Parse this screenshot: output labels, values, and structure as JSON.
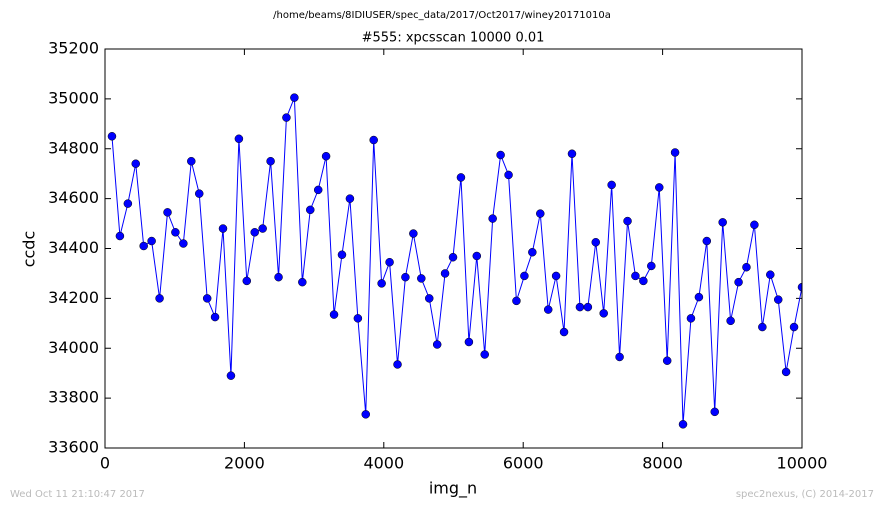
{
  "chart_data": {
    "type": "line",
    "suptitle": "/home/beams/8IDIUSER/spec_data/2017/Oct2017/winey20171010a",
    "title": "#555: xpcsscan 10000 0.01",
    "xlabel": "img_n",
    "ylabel": "ccdc",
    "footer_left": "Wed Oct 11 21:10:47 2017",
    "footer_right": "spec2nexus, (C) 2014-2017",
    "color": "#0000ff",
    "marker": true,
    "grid": false,
    "xlim": [
      0,
      10000
    ],
    "xticks": [
      0,
      2000,
      4000,
      6000,
      8000,
      10000
    ],
    "ylim": [
      33600,
      35200
    ],
    "yticks": [
      33600,
      33800,
      34000,
      34200,
      34400,
      34600,
      34800,
      35000,
      35200
    ],
    "x": [
      100,
      214,
      328,
      441,
      555,
      669,
      783,
      897,
      1010,
      1124,
      1238,
      1352,
      1466,
      1579,
      1693,
      1807,
      1921,
      2034,
      2148,
      2262,
      2376,
      2490,
      2603,
      2717,
      2831,
      2945,
      3059,
      3172,
      3286,
      3400,
      3514,
      3628,
      3741,
      3855,
      3969,
      4083,
      4197,
      4310,
      4424,
      4538,
      4652,
      4766,
      4879,
      4993,
      5107,
      5221,
      5334,
      5448,
      5562,
      5676,
      5790,
      5903,
      6017,
      6131,
      6245,
      6359,
      6472,
      6586,
      6700,
      6814,
      6928,
      7041,
      7155,
      7269,
      7383,
      7497,
      7610,
      7724,
      7838,
      7952,
      8066,
      8179,
      8293,
      8407,
      8521,
      8634,
      8748,
      8862,
      8976,
      9090,
      9203,
      9317,
      9431,
      9545,
      9659,
      9772,
      9886,
      10000
    ],
    "values": [
      34850,
      34450,
      34580,
      34740,
      34410,
      34430,
      34200,
      34545,
      34465,
      34420,
      34750,
      34620,
      34200,
      34125,
      34480,
      33890,
      34840,
      34270,
      34465,
      34480,
      34750,
      34285,
      34925,
      35005,
      34265,
      34555,
      34635,
      34770,
      34135,
      34375,
      34600,
      34120,
      33735,
      34835,
      34260,
      34345,
      33935,
      34285,
      34460,
      34280,
      34200,
      34015,
      34300,
      34365,
      34685,
      34025,
      34370,
      33975,
      34520,
      34775,
      34695,
      34190,
      34290,
      34385,
      34540,
      34155,
      34290,
      34065,
      34780,
      34165,
      34165,
      34425,
      34140,
      34655,
      33965,
      34510,
      34290,
      34270,
      34330,
      34645,
      33950,
      34785,
      33695,
      34120,
      34205,
      34430,
      33745,
      34505,
      34110,
      34265,
      34325,
      34495,
      34085,
      34295,
      34195,
      33905,
      34085,
      34245
    ]
  }
}
